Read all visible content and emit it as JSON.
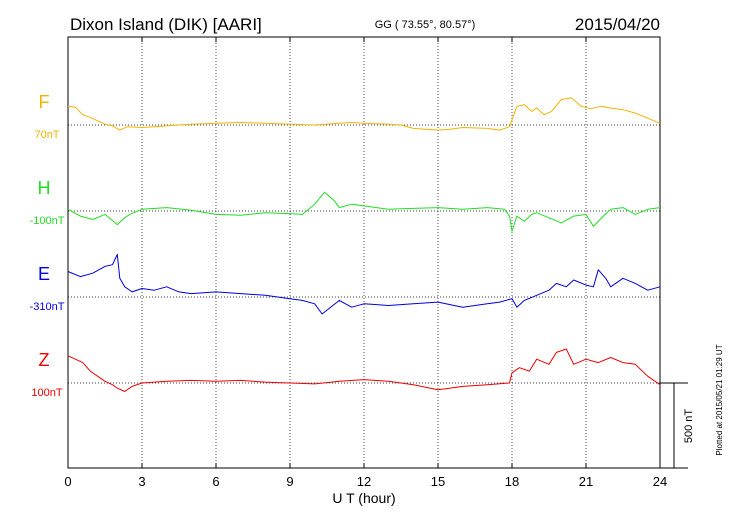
{
  "header": {
    "station": "Dixon Island (DIK)  [AARI]",
    "coords": "GG ( 73.55°,  80.57°)",
    "date": "2015/04/20"
  },
  "footer": {
    "plotted": "Plotted at 2015/05/21 01:29 UT"
  },
  "chart_data": {
    "type": "line",
    "xlabel": "U T (hour)",
    "xlim": [
      0,
      24
    ],
    "xticks": [
      0,
      3,
      6,
      9,
      12,
      15,
      18,
      21,
      24
    ],
    "xtick_labels": [
      "0",
      "3",
      "6",
      "9",
      "12",
      "15",
      "18",
      "21",
      "24"
    ],
    "scale_bar_label": "500 nT",
    "scale_bar_nT": 500,
    "series": [
      {
        "name": "F",
        "baseline_label": "70nT",
        "color": "#f0b400",
        "x": [
          0,
          0.3,
          0.6,
          0.9,
          1.2,
          1.5,
          1.8,
          2.1,
          2.4,
          3,
          3.5,
          4,
          5,
          6,
          7,
          8,
          9,
          10,
          11,
          11.5,
          12,
          13,
          13.5,
          14,
          14.5,
          15,
          15.5,
          16,
          17,
          17.5,
          17.9,
          18,
          18.2,
          18.5,
          18.8,
          19,
          19.3,
          19.6,
          20,
          20.4,
          20.8,
          21.2,
          21.6,
          22,
          22.5,
          23,
          23.5,
          24
        ],
        "values": [
          110,
          105,
          60,
          45,
          25,
          5,
          -5,
          -30,
          -10,
          -15,
          -10,
          -5,
          5,
          10,
          15,
          10,
          5,
          0,
          10,
          15,
          10,
          5,
          0,
          -20,
          -25,
          -30,
          -25,
          -15,
          -20,
          -30,
          -10,
          30,
          110,
          120,
          80,
          100,
          60,
          80,
          150,
          160,
          110,
          95,
          110,
          100,
          90,
          70,
          40,
          10
        ]
      },
      {
        "name": "H",
        "baseline_label": "-100nT",
        "color": "#22dd22",
        "x": [
          0,
          0.5,
          1,
          1.5,
          2,
          2.3,
          2.5,
          3,
          4,
          5,
          6,
          7,
          8,
          9,
          9.5,
          10,
          10.4,
          10.8,
          11,
          11.5,
          12,
          13,
          14,
          15,
          16,
          17,
          17.7,
          17.9,
          18,
          18.2,
          18.5,
          18.8,
          19,
          19.5,
          20,
          20.5,
          21,
          21.3,
          21.7,
          22,
          22.5,
          23,
          23.5,
          24
        ],
        "values": [
          10,
          -30,
          -50,
          -20,
          -80,
          -40,
          -20,
          10,
          20,
          5,
          -20,
          -25,
          -10,
          -15,
          -20,
          40,
          110,
          60,
          20,
          40,
          30,
          10,
          15,
          20,
          10,
          20,
          10,
          -30,
          -120,
          -30,
          -60,
          -20,
          -10,
          -40,
          -70,
          -30,
          -20,
          -90,
          -30,
          10,
          20,
          -20,
          10,
          20
        ]
      },
      {
        "name": "E",
        "baseline_label": "-310nT",
        "color": "#0000dd",
        "x": [
          0,
          0.5,
          1,
          1.5,
          1.8,
          2,
          2.1,
          2.3,
          2.6,
          3,
          3.5,
          4,
          4.5,
          5,
          6,
          7,
          8,
          9,
          9.5,
          10,
          10.3,
          11,
          11.5,
          12,
          13,
          14,
          15,
          16,
          17,
          17.5,
          18,
          18.2,
          18.5,
          19,
          19.5,
          19.8,
          20.2,
          20.5,
          21,
          21.3,
          21.5,
          21.8,
          22,
          22.5,
          23,
          23.5,
          24
        ],
        "values": [
          150,
          120,
          140,
          180,
          190,
          250,
          110,
          60,
          30,
          50,
          40,
          60,
          30,
          20,
          30,
          20,
          10,
          -10,
          -20,
          -40,
          -100,
          -20,
          -60,
          -40,
          -50,
          -40,
          -30,
          -60,
          -40,
          -30,
          -10,
          -60,
          -20,
          10,
          40,
          80,
          60,
          100,
          70,
          60,
          160,
          110,
          60,
          110,
          80,
          40,
          60
        ]
      },
      {
        "name": "Z",
        "baseline_label": "100nT",
        "color": "#ee0000",
        "x": [
          0,
          0.3,
          0.6,
          0.9,
          1.2,
          1.5,
          1.8,
          2,
          2.3,
          2.6,
          3,
          4,
          5,
          6,
          7,
          8,
          9,
          10,
          11,
          12,
          13,
          13.5,
          14,
          15,
          15.5,
          16,
          17,
          17.9,
          18,
          18.3,
          18.7,
          19,
          19.5,
          19.8,
          20.2,
          20.5,
          21,
          21.5,
          22,
          22.5,
          23,
          23.5,
          24
        ],
        "values": [
          160,
          140,
          120,
          70,
          40,
          10,
          -10,
          -30,
          -50,
          -20,
          0,
          10,
          15,
          10,
          15,
          5,
          0,
          -5,
          10,
          20,
          10,
          0,
          -10,
          -40,
          -30,
          -20,
          -10,
          0,
          60,
          90,
          70,
          140,
          110,
          180,
          200,
          110,
          140,
          120,
          150,
          120,
          110,
          40,
          -10
        ]
      }
    ]
  }
}
